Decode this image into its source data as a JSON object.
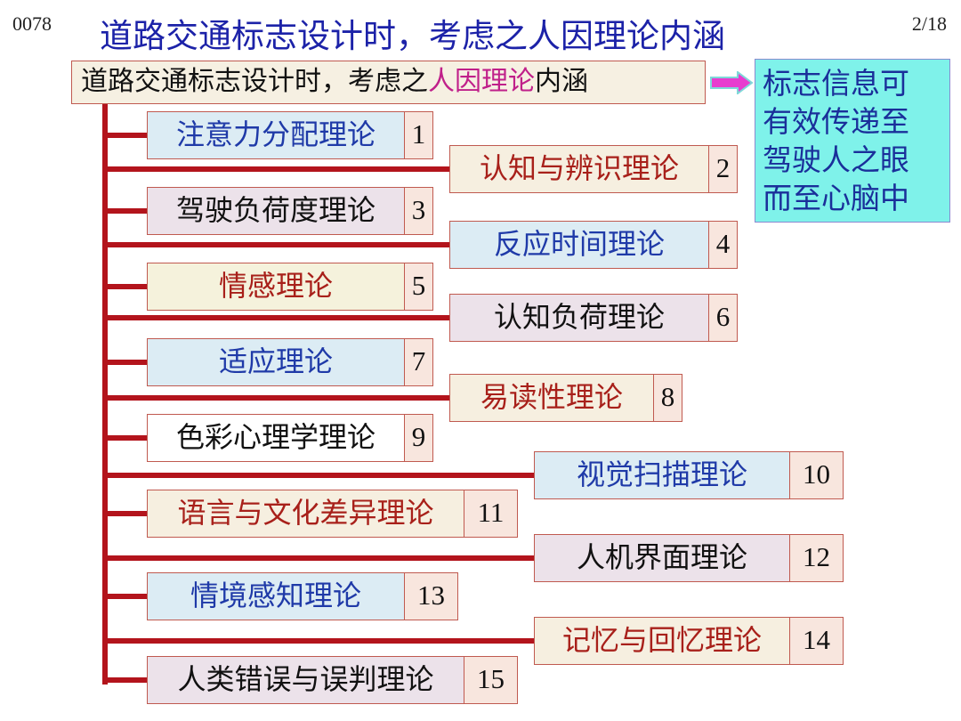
{
  "slide_code": "0078",
  "page_indicator": "2/18",
  "title": "道路交通标志设计时，考虑之人因理论内涵",
  "header": {
    "prefix": "道路交通标志设计时，考虑之",
    "highlight": "人因理论",
    "suffix": "内涵"
  },
  "summary_lines": [
    "标志信息可",
    "有效传递至",
    "驾驶人之眼",
    "而至心脑中"
  ],
  "colors": {
    "trunk": "#b3141c",
    "title": "#1c22a8",
    "highlight": "#c0208a",
    "arrow": "#e83ccf",
    "summary_bg": "#7ff2ea"
  },
  "items": [
    {
      "label": "注意力分配理论",
      "number": "1"
    },
    {
      "label": "认知与辨识理论",
      "number": "2"
    },
    {
      "label": "驾驶负荷度理论",
      "number": "3"
    },
    {
      "label": "反应时间理论",
      "number": "4"
    },
    {
      "label": "情感理论",
      "number": "5"
    },
    {
      "label": "认知负荷理论",
      "number": "6"
    },
    {
      "label": "适应理论",
      "number": "7"
    },
    {
      "label": "易读性理论",
      "number": "8"
    },
    {
      "label": "色彩心理学理论",
      "number": "9"
    },
    {
      "label": "视觉扫描理论",
      "number": "10"
    },
    {
      "label": "语言与文化差异理论",
      "number": "11"
    },
    {
      "label": "人机界面理论",
      "number": "12"
    },
    {
      "label": "情境感知理论",
      "number": "13"
    },
    {
      "label": "记忆与回忆理论",
      "number": "14"
    },
    {
      "label": "人类错误与误判理论",
      "number": "15"
    }
  ]
}
